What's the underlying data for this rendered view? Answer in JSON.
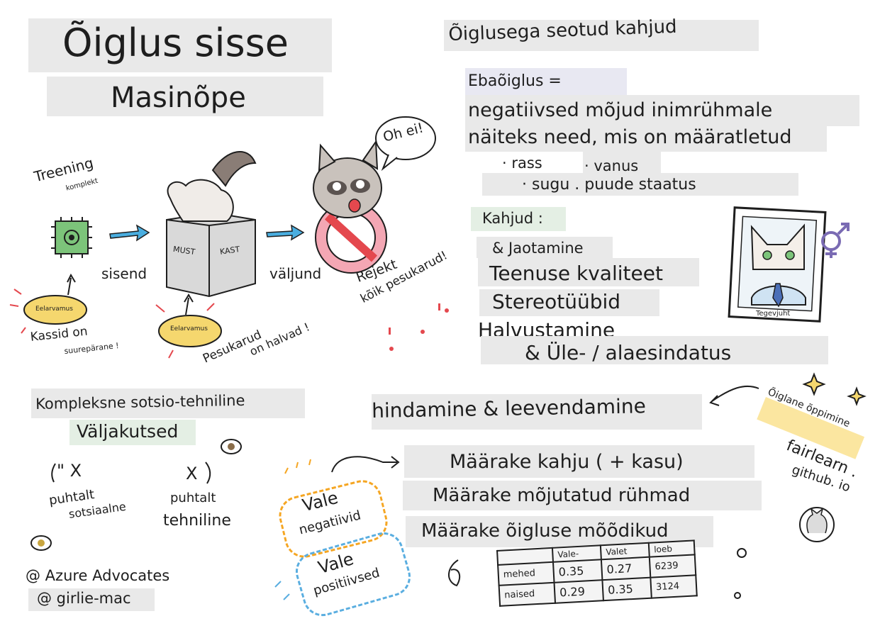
{
  "title": {
    "line1": "Õiglus sisse",
    "line2": "Masinõpe"
  },
  "pipeline": {
    "training_label": "Treening",
    "training_sub": "komplekt",
    "input_label": "sisend",
    "output_label": "väljund",
    "box_left": "MUST",
    "box_right": "KAST",
    "speech": "Oh ei!",
    "reject": "Rejekt",
    "reject_all": "kõik pesukarud!",
    "bias_badge": "Eelarvamus",
    "cats_line1": "Kassid on",
    "cats_line2": "suurepärane !",
    "raccoons_line1": "Pesukarud",
    "raccoons_line2": "on halvad !"
  },
  "harms": {
    "heading": "Õiglusega seotud kahjud",
    "def_line1": "Ebaõiglus =",
    "def_line2": "negatiivsed mõjud inimrühmale",
    "def_line3": "näiteks need, mis on määratletud",
    "attr_race": "· rass",
    "attr_age": "· vanus",
    "attr_gender": "· sugu . puude staatus",
    "list_title": "Kahjud :",
    "items": [
      "& Jaotamine",
      "Teenuse kvaliteet",
      "Stereotüübid",
      "Halvustamine",
      "& Üle- / alaesindatus"
    ],
    "portrait_caption": "Tegevjuht"
  },
  "challenges": {
    "line1": "Kompleksne sotsio-tehniline",
    "line2": "Väljakutsed",
    "social_1": "puhtalt",
    "social_2": "sotsiaalne",
    "tech_1": "puhtalt",
    "tech_2": "tehniline",
    "x_mark": "X",
    "quote_x": "\" X"
  },
  "credits": {
    "line1": "@ Azure Advocates",
    "line2": "@ girlie-mac"
  },
  "assessment": {
    "heading": "hindamine & leevendamine",
    "steps": [
      "Määrake kahju ( + kasu)",
      "Määrake mõjutatud rühmad",
      "Määrake õigluse mõõdikud"
    ],
    "false_neg_1": "Vale",
    "false_neg_2": "negatiivid",
    "false_pos_1": "Vale",
    "false_pos_2": "positiivsed"
  },
  "table": {
    "headers": [
      "",
      "Vale-",
      "Valet",
      "loeb"
    ],
    "rows": [
      [
        "mehed",
        "0.35",
        "0.27",
        "6239"
      ],
      [
        "naised",
        "0.29",
        "0.35",
        "3124"
      ]
    ]
  },
  "fairlearn": {
    "tag": "Õiglane õppimine",
    "line1": "fairlearn .",
    "line2": "github. io"
  },
  "colors": {
    "bar_gray": "#e9e9e9",
    "badge_yellow": "#f5d76e",
    "arrow_blue": "#4aaee0",
    "accent_red": "#e4484e",
    "pill_orange": "#f5a623",
    "pill_blue": "#5aaee0",
    "purple_symbol": "#7a6bb3"
  }
}
